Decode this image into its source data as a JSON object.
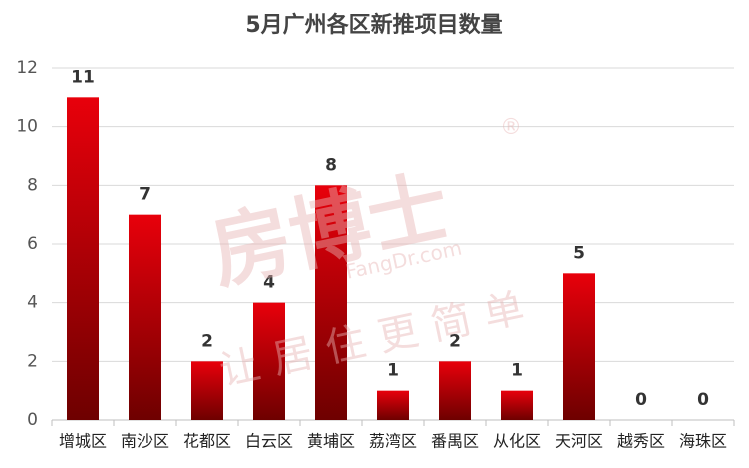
{
  "chart_data": {
    "type": "bar",
    "title": "5月广州各区新推项目数量",
    "categories": [
      "增城区",
      "南沙区",
      "花都区",
      "白云区",
      "黄埔区",
      "荔湾区",
      "番禺区",
      "从化区",
      "天河区",
      "越秀区",
      "海珠区"
    ],
    "values": [
      11,
      7,
      2,
      4,
      8,
      1,
      2,
      1,
      5,
      0,
      0
    ],
    "color": "#e8000b",
    "ylim": [
      0,
      12
    ],
    "yticks": [
      0,
      2,
      4,
      6,
      8,
      10,
      12
    ],
    "grid": true,
    "watermark": {
      "brand": "房博士",
      "mark": "®",
      "site": "FangDr.com",
      "slogan": "让居住更简单"
    }
  }
}
